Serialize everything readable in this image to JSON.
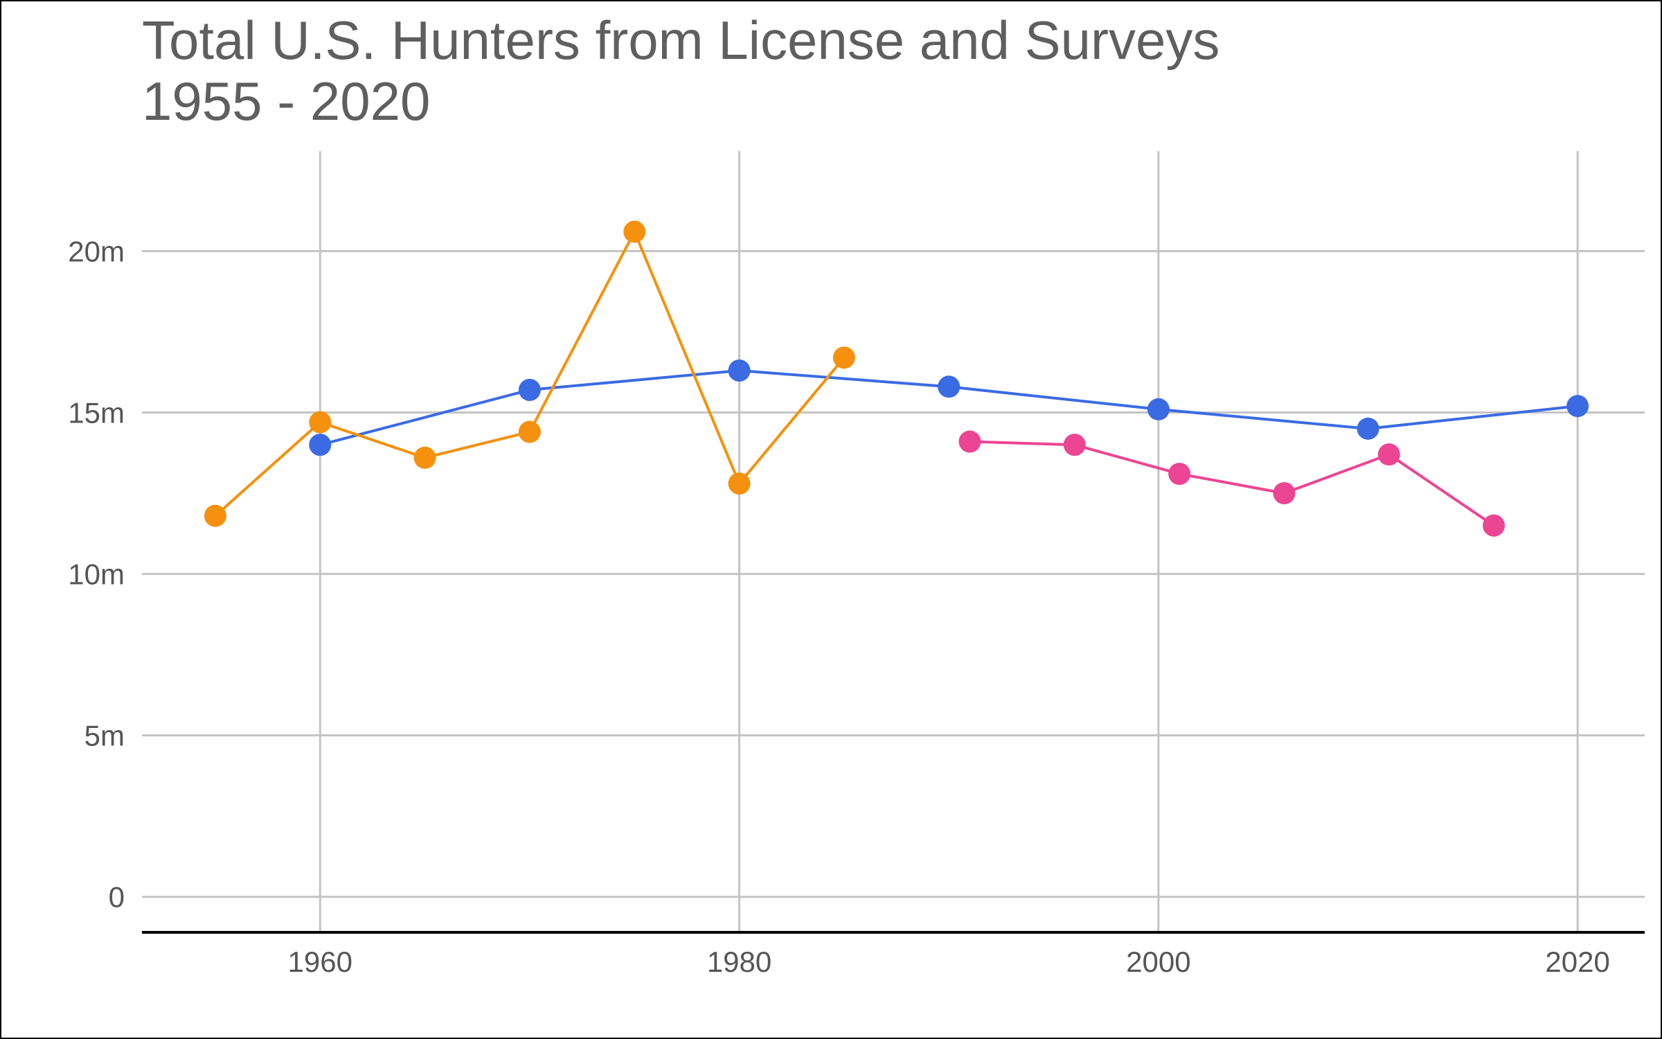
{
  "chart_data": {
    "type": "line",
    "title_lines": [
      "Total U.S. Hunters from License and Surveys",
      "1955 - 2020"
    ],
    "xlabel": "",
    "ylabel": "",
    "xlim": [
      1951.5,
      2023.2
    ],
    "ylim": [
      -1.1,
      23.1
    ],
    "x_ticks": [
      {
        "value": 1960,
        "label": "1960"
      },
      {
        "value": 1980,
        "label": "1980"
      },
      {
        "value": 2000,
        "label": "2000"
      },
      {
        "value": 2020,
        "label": "2020"
      }
    ],
    "y_ticks": [
      {
        "value": 0,
        "label": "0"
      },
      {
        "value": 5,
        "label": "5m"
      },
      {
        "value": 10,
        "label": "10m"
      },
      {
        "value": 15,
        "label": "15m"
      },
      {
        "value": 20,
        "label": "20m"
      }
    ],
    "grid": true,
    "legend": "none",
    "series": [
      {
        "color": "#3b6be3",
        "x": [
          1960,
          1970,
          1980,
          1990,
          2000,
          2010,
          2020
        ],
        "y": [
          14.0,
          15.7,
          16.3,
          15.8,
          15.1,
          14.5,
          15.2
        ]
      },
      {
        "color": "#f5910f",
        "x": [
          1955,
          1960,
          1965,
          1970,
          1975,
          1980,
          1985
        ],
        "y": [
          11.8,
          14.7,
          13.6,
          14.4,
          20.6,
          12.8,
          16.7
        ]
      },
      {
        "color": "#ec4593",
        "x": [
          1991,
          1996,
          2001,
          2006,
          2011,
          2016
        ],
        "y": [
          14.1,
          14.0,
          13.1,
          12.5,
          13.7,
          11.5
        ]
      }
    ]
  }
}
